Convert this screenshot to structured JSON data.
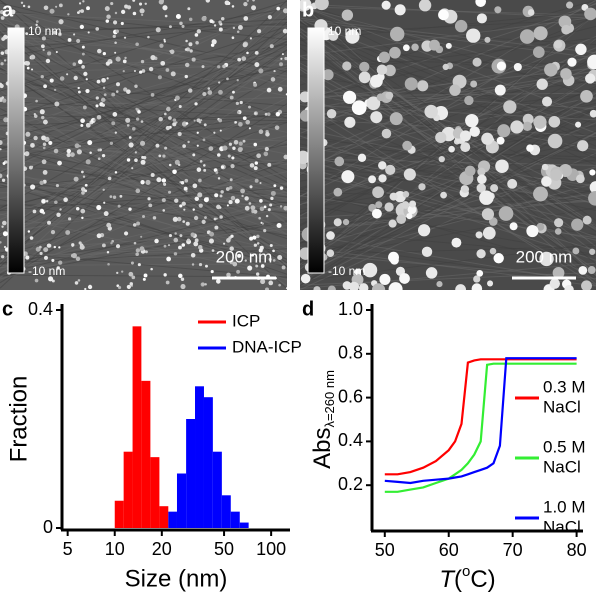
{
  "images": [
    {
      "label": "a",
      "scale_max": "10 nm",
      "scale_min": "-10 nm",
      "scale_bar": "200 nm"
    },
    {
      "label": "b",
      "scale_max": "10 nm",
      "scale_min": "-10 nm",
      "scale_bar": "200 nm"
    }
  ],
  "chart_data": [
    {
      "type": "histogram",
      "panel": "c",
      "x_label": "Size (nm)",
      "y_label": "Fraction",
      "log_x": true,
      "xlim": [
        4.6,
        132
      ],
      "xticks": [
        5,
        10,
        20,
        50,
        100
      ],
      "ylim": [
        0,
        0.4
      ],
      "yticks": [
        0,
        0.4
      ],
      "legend": "upper right",
      "series": [
        {
          "name": "ICP",
          "color": "#ff0000",
          "bins": [
            10,
            11.4,
            13,
            14.8,
            16.9,
            19.3,
            22
          ],
          "values": [
            0.05,
            0.14,
            0.37,
            0.27,
            0.13,
            0.04
          ]
        },
        {
          "name": "DNA-ICP",
          "color": "#0000ff",
          "bins": [
            22,
            25,
            28.6,
            32.6,
            37.2,
            42.4,
            48.4,
            55.2,
            63,
            71.8
          ],
          "values": [
            0.03,
            0.1,
            0.2,
            0.26,
            0.24,
            0.14,
            0.06,
            0.03,
            0.01
          ]
        }
      ]
    },
    {
      "type": "line",
      "panel": "d",
      "x_label_var": "T",
      "x_label_pre": "(",
      "x_label_sup": "o",
      "x_label_post": "C)",
      "y_label": "Abs",
      "y_label_sub": "λ=260 nm",
      "xlim": [
        48,
        81
      ],
      "xticks": [
        50,
        60,
        70,
        80
      ],
      "ylim": [
        0,
        1
      ],
      "yticks": [
        0.2,
        0.4,
        0.6,
        0.8,
        {
          "value": 1,
          "label": "1.0"
        }
      ],
      "legend": "center right",
      "x": [
        50,
        52,
        54,
        56,
        58,
        60,
        61,
        62,
        63,
        64,
        65,
        66,
        67,
        68,
        69,
        70,
        72,
        74,
        76,
        78,
        80
      ],
      "series": [
        {
          "name": [
            "0.3 M",
            "NaCl"
          ],
          "color": "#ff0000",
          "values": [
            0.25,
            0.25,
            0.26,
            0.28,
            0.31,
            0.36,
            0.4,
            0.48,
            0.76,
            0.77,
            0.775,
            0.775,
            0.775,
            0.775,
            0.775,
            0.775,
            0.775,
            0.775,
            0.775,
            0.775,
            0.775
          ]
        },
        {
          "name": [
            "0.5 M",
            "NaCl"
          ],
          "color": "#33ee33",
          "values": [
            0.17,
            0.17,
            0.18,
            0.19,
            0.21,
            0.23,
            0.25,
            0.27,
            0.3,
            0.34,
            0.4,
            0.75,
            0.755,
            0.755,
            0.755,
            0.755,
            0.755,
            0.755,
            0.755,
            0.755,
            0.755
          ]
        },
        {
          "name": [
            "1.0 M",
            "NaCl"
          ],
          "color": "#0000ff",
          "values": [
            0.22,
            0.215,
            0.21,
            0.22,
            0.225,
            0.23,
            0.235,
            0.24,
            0.25,
            0.26,
            0.27,
            0.28,
            0.3,
            0.38,
            0.78,
            0.78,
            0.78,
            0.78,
            0.78,
            0.78,
            0.78
          ]
        }
      ]
    }
  ]
}
